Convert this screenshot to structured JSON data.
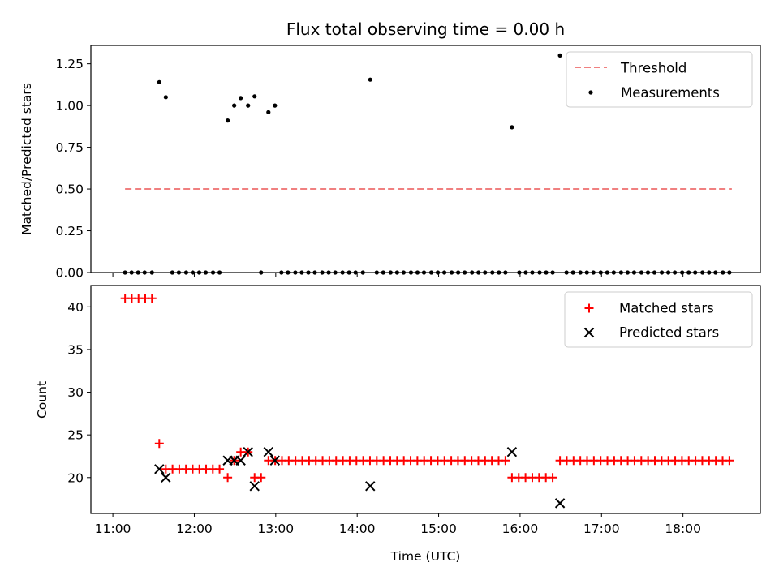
{
  "chart_data": {
    "type": "scatter",
    "title": "Flux total observing time = 0.00 h",
    "xlabel": "Time (UTC)",
    "x_ticks": [
      {
        "t": 11.0,
        "label": "11:00"
      },
      {
        "t": 12.0,
        "label": "12:00"
      },
      {
        "t": 13.0,
        "label": "13:00"
      },
      {
        "t": 14.0,
        "label": "14:00"
      },
      {
        "t": 15.0,
        "label": "15:00"
      },
      {
        "t": 16.0,
        "label": "16:00"
      },
      {
        "t": 17.0,
        "label": "17:00"
      },
      {
        "t": 18.0,
        "label": "18:00"
      }
    ],
    "xlim_hours": [
      10.73,
      18.95
    ],
    "panels": [
      {
        "id": "top",
        "ylabel": "Matched/Predicted stars",
        "ylim": [
          0,
          1.36
        ],
        "y_ticks": [
          {
            "v": 0.0,
            "label": "0.00"
          },
          {
            "v": 0.25,
            "label": "0.25"
          },
          {
            "v": 0.5,
            "label": "0.50"
          },
          {
            "v": 0.75,
            "label": "0.75"
          },
          {
            "v": 1.0,
            "label": "1.00"
          },
          {
            "v": 1.25,
            "label": "1.25"
          }
        ],
        "threshold": {
          "name": "Threshold",
          "value": 0.5,
          "x_range": [
            11.15,
            18.6
          ],
          "color": "#f08080"
        },
        "measurements": {
          "name": "Measurements",
          "color": "#000000",
          "points": [
            [
              11.57,
              1.14
            ],
            [
              11.65,
              1.05
            ],
            [
              12.41,
              0.91
            ],
            [
              12.49,
              1.0
            ],
            [
              12.57,
              1.045
            ],
            [
              12.66,
              1.0
            ],
            [
              12.74,
              1.055
            ],
            [
              12.91,
              0.96
            ],
            [
              12.99,
              1.0
            ],
            [
              14.16,
              1.155
            ],
            [
              15.9,
              0.87
            ],
            [
              16.49,
              1.3
            ]
          ],
          "zero_times": [
            11.15,
            11.23,
            11.31,
            11.39,
            11.48,
            11.73,
            11.81,
            11.9,
            11.98,
            12.06,
            12.14,
            12.23,
            12.31,
            12.82,
            13.07,
            13.15,
            13.24,
            13.32,
            13.4,
            13.48,
            13.57,
            13.65,
            13.73,
            13.82,
            13.9,
            13.98,
            14.07,
            14.24,
            14.32,
            14.41,
            14.49,
            14.57,
            14.66,
            14.74,
            14.82,
            14.91,
            14.99,
            15.07,
            15.16,
            15.24,
            15.32,
            15.41,
            15.49,
            15.57,
            15.66,
            15.74,
            15.82,
            15.99,
            16.07,
            16.15,
            16.24,
            16.32,
            16.4,
            16.57,
            16.65,
            16.74,
            16.82,
            16.9,
            16.99,
            17.07,
            17.15,
            17.24,
            17.32,
            17.4,
            17.49,
            17.57,
            17.65,
            17.74,
            17.82,
            17.9,
            17.99,
            18.07,
            18.15,
            18.24,
            18.32,
            18.4,
            18.49,
            18.57
          ]
        },
        "legend": {
          "position": "top-right",
          "entries": [
            "Threshold",
            "Measurements"
          ]
        }
      },
      {
        "id": "bottom",
        "ylabel": "Count",
        "ylim": [
          15.8,
          42.5
        ],
        "y_ticks": [
          {
            "v": 20,
            "label": "20"
          },
          {
            "v": 25,
            "label": "25"
          },
          {
            "v": 30,
            "label": "30"
          },
          {
            "v": 35,
            "label": "35"
          },
          {
            "v": 40,
            "label": "40"
          }
        ],
        "series": [
          {
            "name": "Matched stars",
            "marker": "plus",
            "color": "#ff0000",
            "segments": [
              {
                "start": 11.15,
                "end": 11.48,
                "step": 0.0825,
                "value": 41
              },
              {
                "start": 11.57,
                "end": 11.57,
                "step": 0.0825,
                "value": 24
              },
              {
                "start": 11.65,
                "end": 12.31,
                "step": 0.0825,
                "value": 21
              },
              {
                "start": 12.41,
                "end": 12.41,
                "step": 0.0825,
                "value": 20
              },
              {
                "start": 12.49,
                "end": 12.49,
                "step": 0.0825,
                "value": 22
              },
              {
                "start": 12.57,
                "end": 12.57,
                "step": 0.0825,
                "value": 23
              },
              {
                "start": 12.66,
                "end": 12.66,
                "step": 0.0825,
                "value": 23
              },
              {
                "start": 12.74,
                "end": 12.82,
                "step": 0.0825,
                "value": 20
              },
              {
                "start": 12.91,
                "end": 15.82,
                "step": 0.0825,
                "value": 22
              },
              {
                "start": 15.9,
                "end": 16.4,
                "step": 0.0825,
                "value": 20
              },
              {
                "start": 16.49,
                "end": 18.57,
                "step": 0.0825,
                "value": 22
              }
            ]
          },
          {
            "name": "Predicted stars",
            "marker": "x",
            "color": "#000000",
            "points": [
              [
                11.57,
                21
              ],
              [
                11.65,
                20
              ],
              [
                12.41,
                22
              ],
              [
                12.49,
                22
              ],
              [
                12.57,
                22
              ],
              [
                12.66,
                23
              ],
              [
                12.74,
                19
              ],
              [
                12.91,
                23
              ],
              [
                12.99,
                22
              ],
              [
                14.16,
                19
              ],
              [
                15.9,
                23
              ],
              [
                16.49,
                17
              ]
            ]
          }
        ],
        "legend": {
          "position": "top-right",
          "entries": [
            "Matched stars",
            "Predicted stars"
          ]
        }
      }
    ]
  }
}
